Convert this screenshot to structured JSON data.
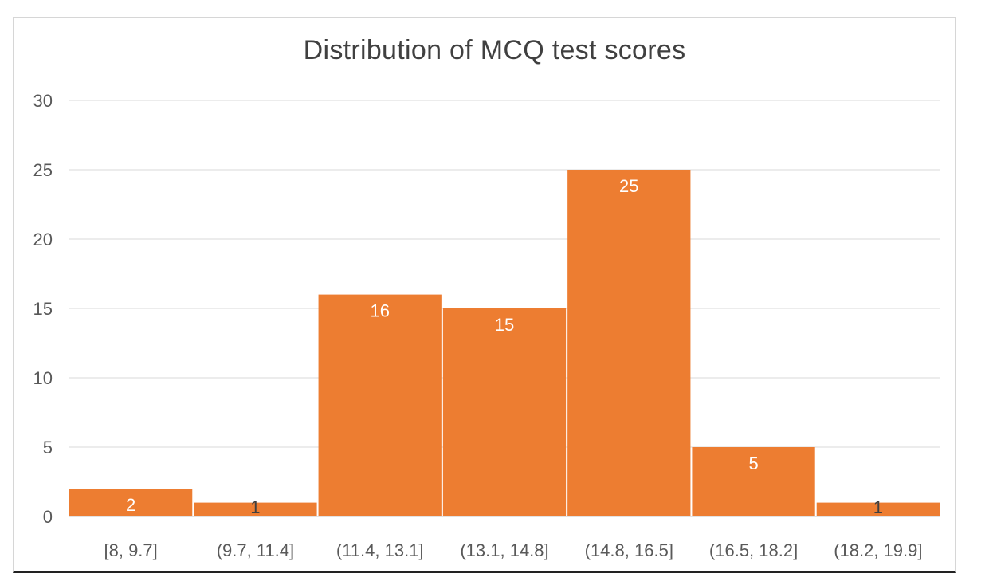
{
  "chart_data": {
    "type": "bar",
    "title": "Distribution of MCQ test scores",
    "categories": [
      "[8, 9.7]",
      "(9.7, 11.4]",
      "(11.4, 13.1]",
      "(13.1, 14.8]",
      "(14.8, 16.5]",
      "(16.5, 18.2]",
      "(18.2, 19.9]"
    ],
    "values": [
      2,
      1,
      16,
      15,
      25,
      5,
      1
    ],
    "data_labels": [
      "2",
      "1",
      "16",
      "15",
      "25",
      "5",
      "1"
    ],
    "ylim": [
      0,
      30
    ],
    "yticks": [
      0,
      5,
      10,
      15,
      20,
      25,
      30
    ],
    "grid": true,
    "legend": "none",
    "bar_color": "#ED7D31"
  }
}
